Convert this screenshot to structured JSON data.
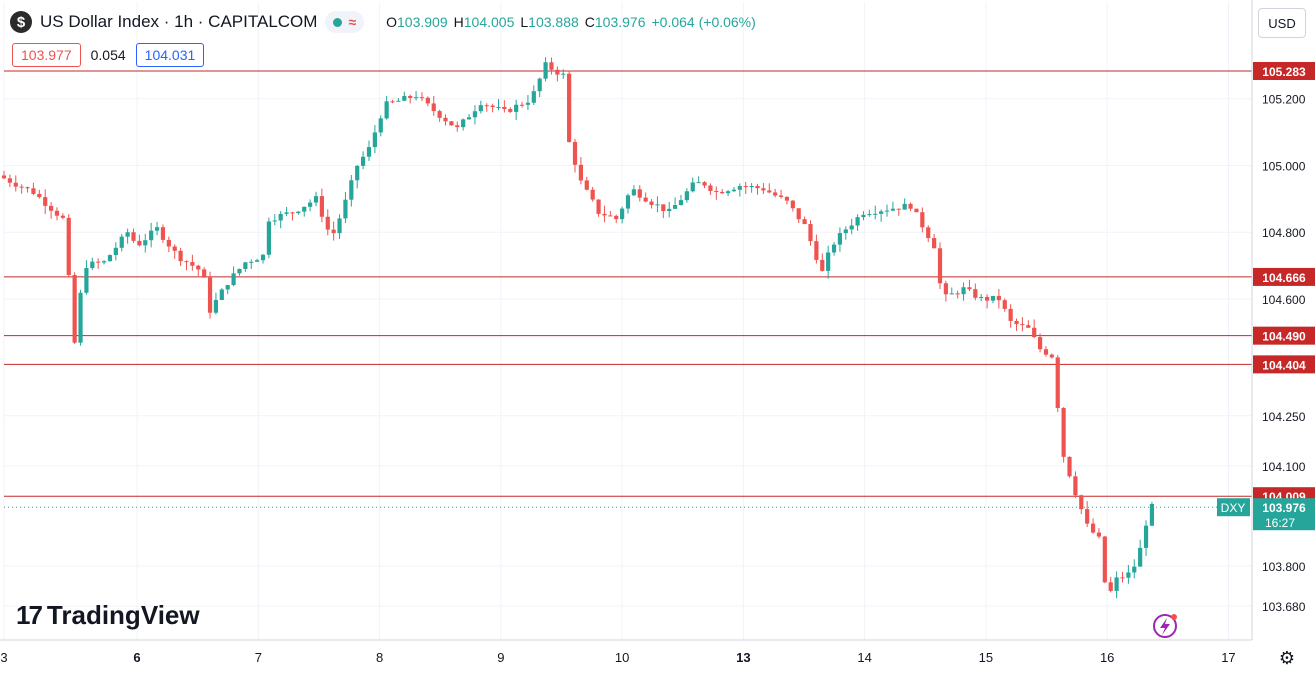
{
  "header": {
    "symbol_icon": "$",
    "title": "US Dollar Index · 1h · CAPITALCOM",
    "wave_icon": "≈",
    "open_label": "O",
    "open": "103.909",
    "high_label": "H",
    "high": "104.005",
    "low_label": "L",
    "low": "103.888",
    "close_label": "C",
    "close": "103.976",
    "change": "+0.064 (+0.06%)"
  },
  "quote": {
    "bid": "103.977",
    "spread": "0.054",
    "ask": "104.031"
  },
  "currency_button": "USD",
  "branding": {
    "logo_text": "TradingView",
    "logo_mark": "17"
  },
  "colors": {
    "up": "#26a69a",
    "down": "#ef5350",
    "level_line": "#c62828",
    "price_tag": "#26a69a"
  },
  "chart_data": {
    "type": "candlestick",
    "y_ticks": [
      105.2,
      105.0,
      104.8,
      104.6,
      104.25,
      104.1,
      103.8,
      103.68
    ],
    "y_tick_labels": [
      "105.200",
      "105.000",
      "104.800",
      "104.600",
      "104.250",
      "104.100",
      "103.800",
      "103.680"
    ],
    "x_ticks": [
      {
        "label": "3",
        "x": 0.0
      },
      {
        "label": "6",
        "x": 11.3
      },
      {
        "label": "7",
        "x": 21.6
      },
      {
        "label": "8",
        "x": 31.9
      },
      {
        "label": "9",
        "x": 42.2
      },
      {
        "label": "10",
        "x": 52.5
      },
      {
        "label": "13",
        "x": 62.8
      },
      {
        "label": "14",
        "x": 73.1
      },
      {
        "label": "15",
        "x": 83.4
      },
      {
        "label": "16",
        "x": 93.7
      },
      {
        "label": "17",
        "x": 104.0
      }
    ],
    "x_range": [
      0,
      106
    ],
    "levels": [
      105.283,
      104.666,
      104.49,
      104.404,
      104.009
    ],
    "level_labels": [
      "105.283",
      "104.666",
      "104.490",
      "104.404",
      "104.009"
    ],
    "current": {
      "symbol": "DXY",
      "price": "103.976",
      "countdown": "16:27",
      "value": 103.976
    },
    "anchors": [
      [
        0,
        104.97
      ],
      [
        3,
        104.92
      ],
      [
        5.8,
        104.83
      ],
      [
        6.3,
        104.41
      ],
      [
        7.3,
        104.7
      ],
      [
        9,
        104.71
      ],
      [
        11,
        104.8
      ],
      [
        11.8,
        104.76
      ],
      [
        13.5,
        104.81
      ],
      [
        15.2,
        104.73
      ],
      [
        17.4,
        104.68
      ],
      [
        17.9,
        104.56
      ],
      [
        19.5,
        104.65
      ],
      [
        21,
        104.71
      ],
      [
        22.5,
        104.73
      ],
      [
        23,
        104.84
      ],
      [
        25,
        104.86
      ],
      [
        27,
        104.9
      ],
      [
        28.3,
        104.78
      ],
      [
        29.3,
        104.87
      ],
      [
        30.5,
        105.0
      ],
      [
        31.5,
        105.05
      ],
      [
        32.8,
        105.18
      ],
      [
        35.5,
        105.21
      ],
      [
        36.8,
        105.17
      ],
      [
        39,
        105.11
      ],
      [
        41,
        105.19
      ],
      [
        43,
        105.16
      ],
      [
        45.3,
        105.2
      ],
      [
        46.5,
        105.3
      ],
      [
        48,
        105.27
      ],
      [
        48.4,
        105.08
      ],
      [
        49.5,
        104.95
      ],
      [
        51,
        104.86
      ],
      [
        52.5,
        104.84
      ],
      [
        53.8,
        104.93
      ],
      [
        55.5,
        104.89
      ],
      [
        57,
        104.86
      ],
      [
        59,
        104.94
      ],
      [
        59.8,
        104.95
      ],
      [
        61,
        104.92
      ],
      [
        63,
        104.94
      ],
      [
        65,
        104.93
      ],
      [
        67,
        104.89
      ],
      [
        68.5,
        104.82
      ],
      [
        70,
        104.68
      ],
      [
        70.8,
        104.76
      ],
      [
        72,
        104.81
      ],
      [
        73.5,
        104.86
      ],
      [
        75.5,
        104.87
      ],
      [
        77.5,
        104.88
      ],
      [
        78.5,
        104.82
      ],
      [
        79.5,
        104.76
      ],
      [
        80.2,
        104.6
      ],
      [
        82,
        104.63
      ],
      [
        83.5,
        104.6
      ],
      [
        85,
        104.6
      ],
      [
        86,
        104.53
      ],
      [
        87.5,
        104.51
      ],
      [
        88.5,
        104.45
      ],
      [
        89.5,
        104.43
      ],
      [
        90.5,
        104.13
      ],
      [
        91.5,
        104.02
      ],
      [
        92.5,
        103.92
      ],
      [
        93.5,
        103.88
      ],
      [
        94.2,
        103.7
      ],
      [
        95,
        103.76
      ],
      [
        96.3,
        103.78
      ],
      [
        97,
        103.85
      ],
      [
        97.8,
        103.976
      ]
    ]
  }
}
